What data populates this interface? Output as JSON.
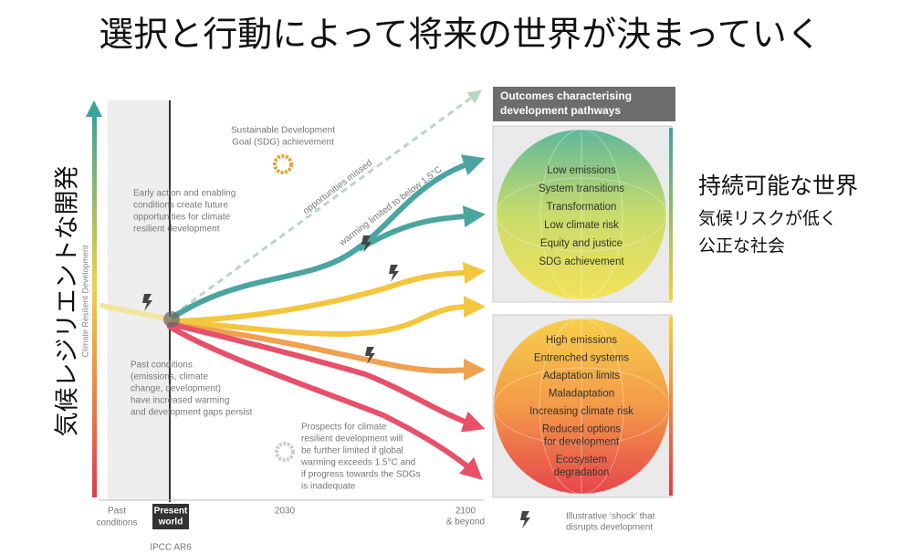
{
  "title": "選択と行動によって将来の世界が決まっていく",
  "left_label": "気候レジリエントな開発",
  "right_text": {
    "heading": "持続可能な世界",
    "lines": [
      "気候リスクが低く",
      "公正な社会"
    ]
  },
  "figure": {
    "axis_label": "Climate Resilient Development",
    "outcomes_header": [
      "Outcomes characterising",
      "development pathways"
    ],
    "good_outcomes": [
      [
        "Low emissions"
      ],
      [
        "System transitions"
      ],
      [
        "Transformation"
      ],
      [
        "Low climate risk"
      ],
      [
        "Equity and justice"
      ],
      [
        "SDG achievement"
      ]
    ],
    "bad_outcomes": [
      [
        "High emissions"
      ],
      [
        "Entrenched systems"
      ],
      [
        "Adaptation limits"
      ],
      [
        "Maladaptation"
      ],
      [
        "Increasing climate risk"
      ],
      [
        "Reduced options",
        "for development"
      ],
      [
        "Ecosystem",
        "degradation"
      ]
    ],
    "sdg_note": [
      "Sustainable Development",
      "Goal (SDG) achievement"
    ],
    "early_action_note": [
      "Early action and enabling",
      "conditions create future",
      "opportunities for climate",
      "resilient development"
    ],
    "past_note": [
      "Past conditions",
      "(emissions, climate",
      "change, development)",
      "have increased warming",
      "and development gaps persist"
    ],
    "prospects_note": [
      "Prospects for climate",
      "resilient development will",
      "be further limited if global",
      "warming exceeds 1.5°C and",
      "if progress towards the SDGs",
      "is inadequate"
    ],
    "opportunities_missed": "opportunities missed",
    "warming_limited": "warming limited to below 1.5°C",
    "x_labels": {
      "past": [
        "Past",
        "conditions"
      ],
      "present": [
        "Present",
        "world"
      ],
      "source": "IPCC AR6",
      "mid": "2030",
      "end": [
        "2100",
        "& beyond"
      ]
    },
    "legend": [
      "Illustrative ‘shock’ that",
      "disrupts development"
    ]
  }
}
